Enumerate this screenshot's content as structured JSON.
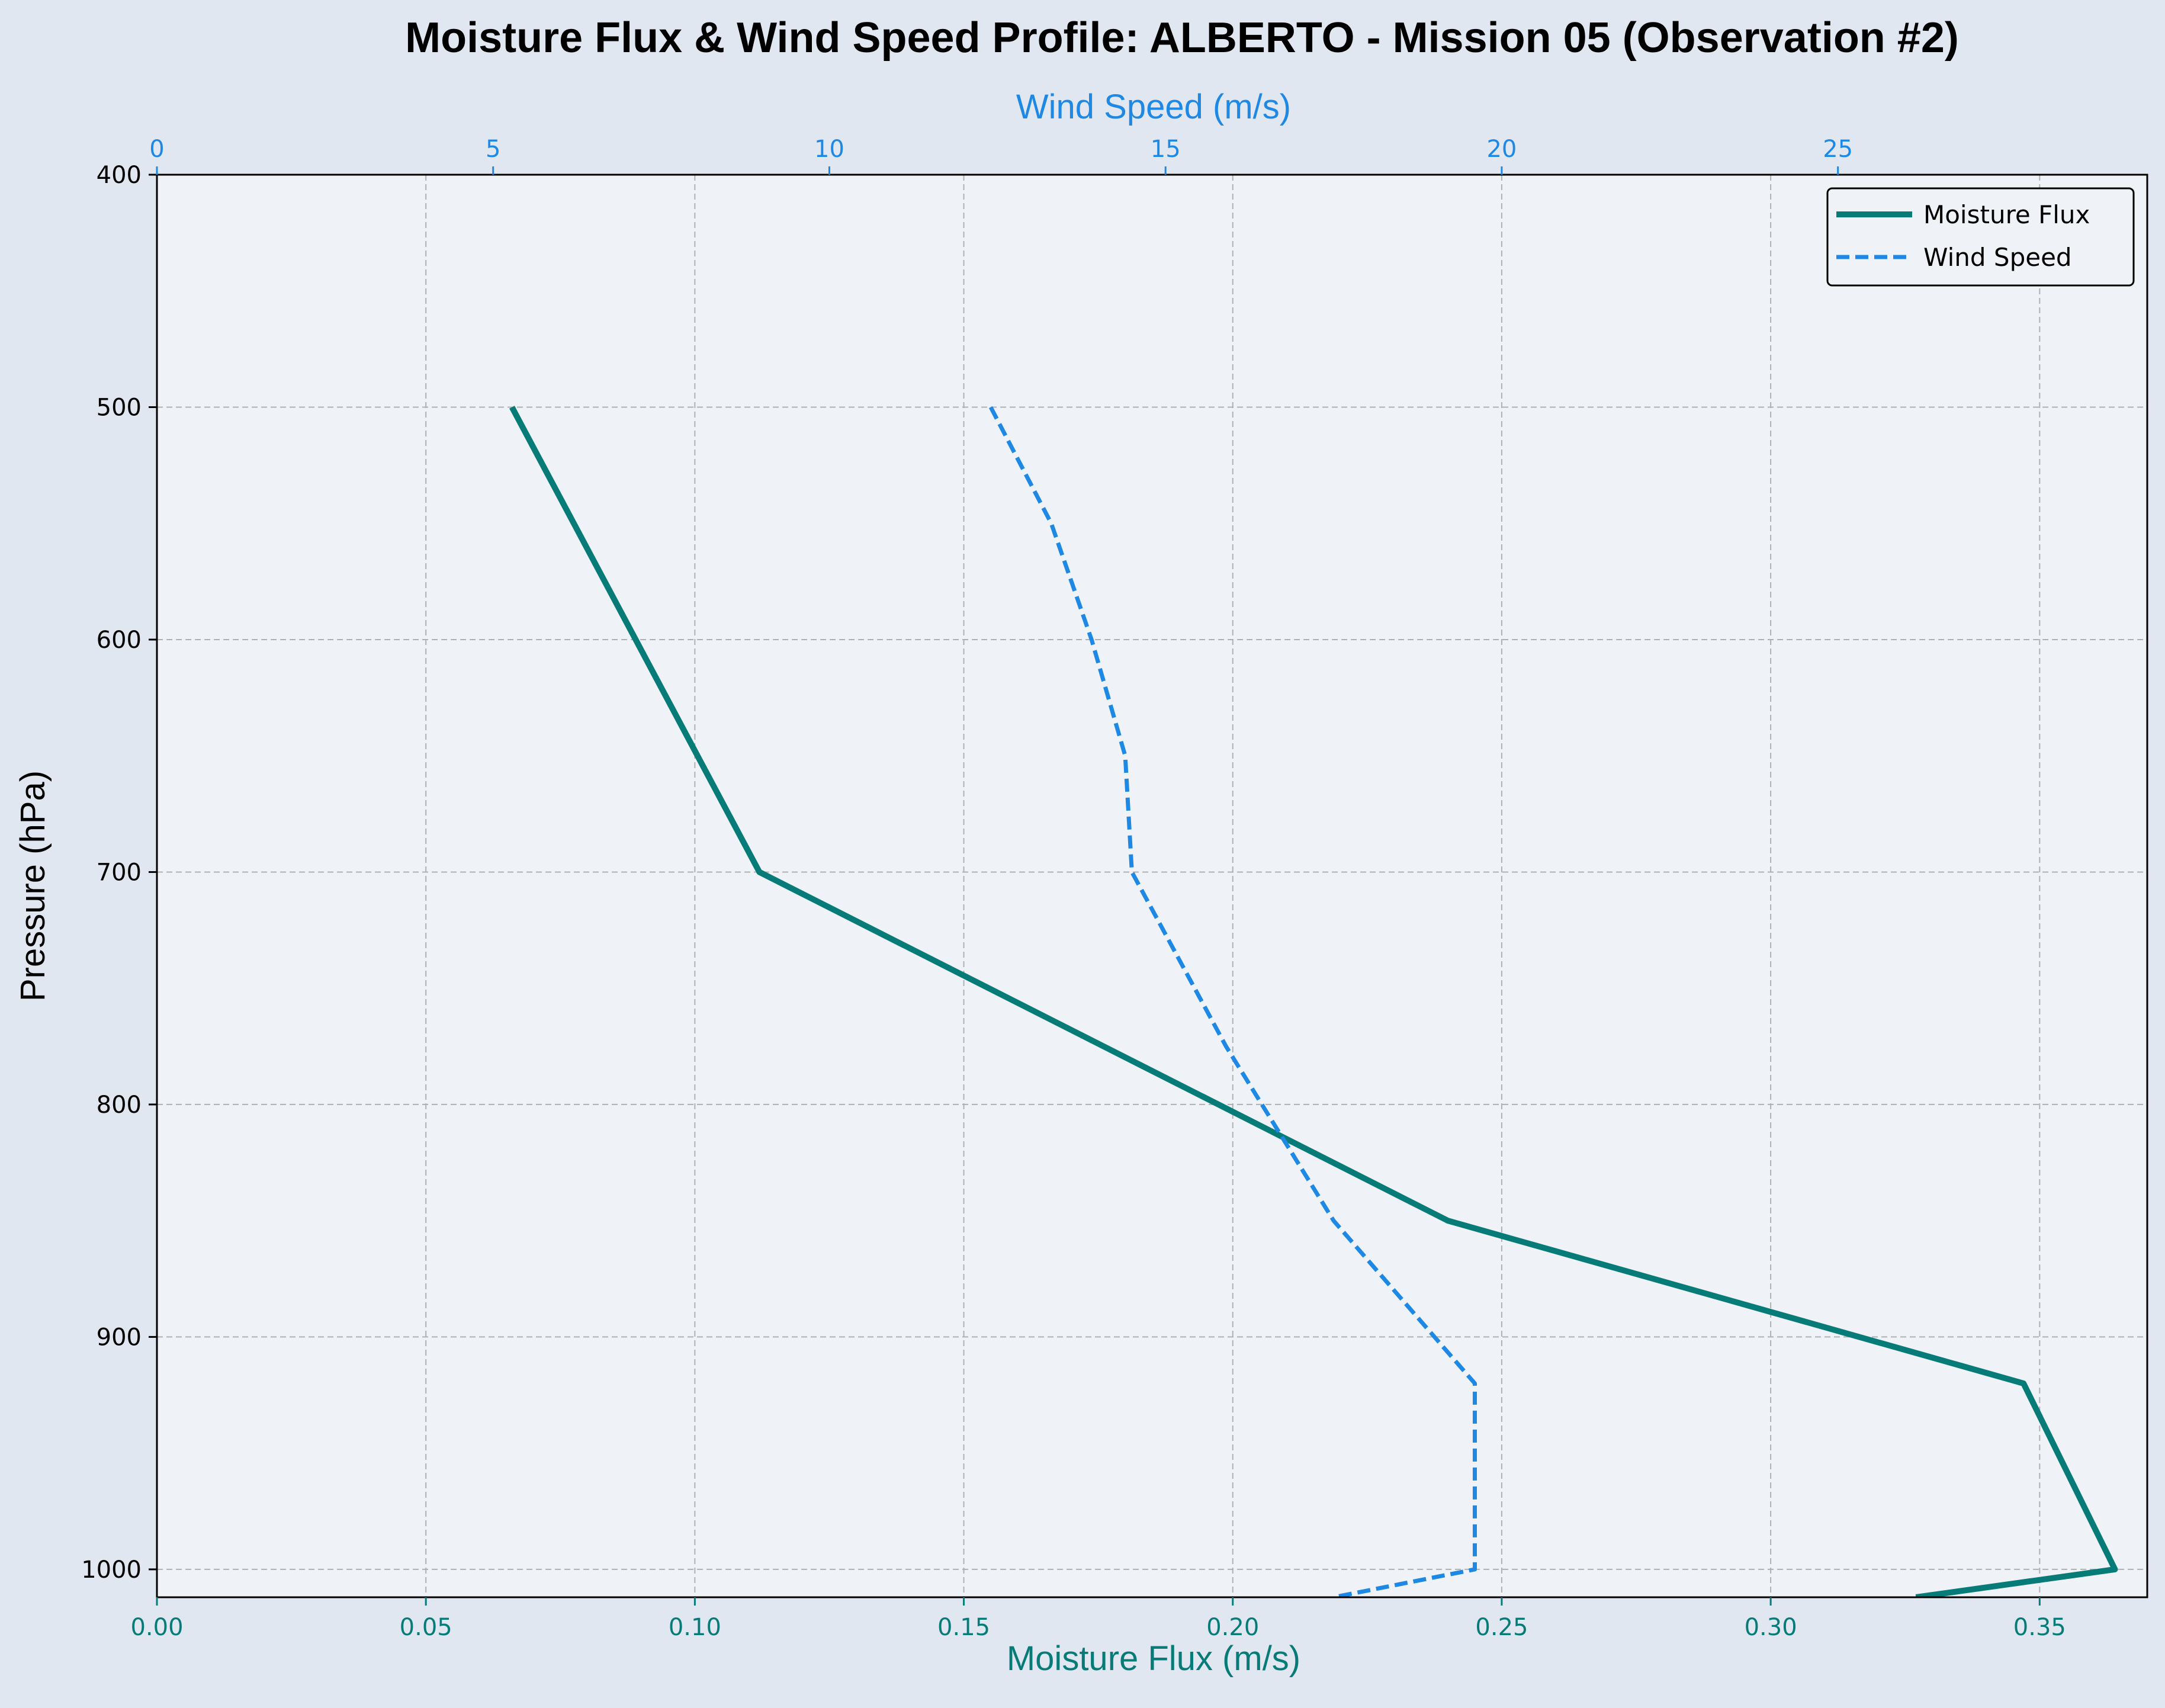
{
  "chart_data": {
    "type": "line",
    "title": "Moisture Flux & Wind Speed Profile: ALBERTO - Mission 05 (Observation #2)",
    "xlabel_bottom": "Moisture Flux (m/s)",
    "xlabel_top": "Wind Speed (m/s)",
    "ylabel": "Pressure (hPa)",
    "y_inverted": true,
    "ylim": [
      1012,
      400
    ],
    "xlim_bottom": [
      0,
      0.37
    ],
    "xlim_top": [
      0,
      29.6
    ],
    "y_ticks": [
      400,
      500,
      600,
      700,
      800,
      900,
      1000
    ],
    "x_ticks_bottom": [
      "0.00",
      "0.05",
      "0.10",
      "0.15",
      "0.20",
      "0.25",
      "0.30",
      "0.35"
    ],
    "x_ticks_top": [
      "0",
      "5",
      "10",
      "15",
      "20",
      "25"
    ],
    "grid": true,
    "legend_position": "top-right",
    "colors": {
      "flux": "#077b78",
      "wind": "#1e88e5",
      "plot_bg": "#eff3f8",
      "fig_bg": "#e1e7f0",
      "grid": "#b0b0b0"
    },
    "series": [
      {
        "name": "Moisture Flux",
        "axis": "bottom",
        "style": "solid",
        "points": [
          {
            "x": 0.066,
            "y": 500
          },
          {
            "x": 0.112,
            "y": 700
          },
          {
            "x": 0.24,
            "y": 850
          },
          {
            "x": 0.347,
            "y": 920
          },
          {
            "x": 0.364,
            "y": 1000
          },
          {
            "x": 0.327,
            "y": 1012
          }
        ]
      },
      {
        "name": "Wind Speed",
        "axis": "top",
        "style": "dashed",
        "points": [
          {
            "x": 12.4,
            "y": 500
          },
          {
            "x": 13.3,
            "y": 550
          },
          {
            "x": 13.9,
            "y": 600
          },
          {
            "x": 14.4,
            "y": 650
          },
          {
            "x": 14.5,
            "y": 700
          },
          {
            "x": 15.9,
            "y": 775
          },
          {
            "x": 17.5,
            "y": 850
          },
          {
            "x": 19.6,
            "y": 920
          },
          {
            "x": 19.6,
            "y": 1000
          },
          {
            "x": 17.5,
            "y": 1012
          }
        ]
      }
    ]
  }
}
